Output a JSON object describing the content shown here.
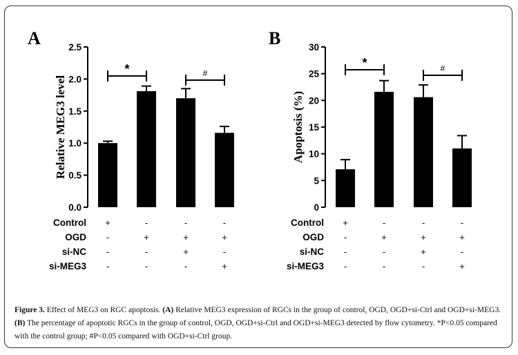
{
  "caption": {
    "lead": "Figure 3.",
    "p1": " Effect of MEG3 on RGC apoptosis. ",
    "a_tag": "(A)",
    "p2": " Relative MEG3 expression of RGCs in the group of control, OGD, OGD+si-Ctrl and OGD+si-MEG3. ",
    "b_tag": "(B)",
    "p3": " The percentage of apoptotic RGCs in the group of control, OGD, OGD+si-Ctrl and OGD+si-MEG3 detected by flow cytometry. *P<0.05 compared with the control group; #P<0.05 compared with OGD+si-Ctrl group."
  },
  "chart_data": [
    {
      "type": "bar",
      "panel": "A",
      "ylabel": "Relative MEG3 level",
      "ylim": [
        0,
        2.5
      ],
      "yticks": [
        "0.0",
        "0.5",
        "1.0",
        "1.5",
        "2.0",
        "2.5"
      ],
      "values": [
        1.0,
        1.81,
        1.7,
        1.16
      ],
      "errors": [
        0.03,
        0.08,
        0.15,
        0.1
      ],
      "bar_color": "#000000",
      "significance": [
        {
          "from": 0,
          "to": 1,
          "label": "*"
        },
        {
          "from": 2,
          "to": 3,
          "label": "#"
        }
      ],
      "conditions": [
        {
          "name": "Control",
          "marks": [
            "+",
            "-",
            "-",
            "-"
          ]
        },
        {
          "name": "OGD",
          "marks": [
            "-",
            "+",
            "+",
            "+"
          ]
        },
        {
          "name": "si-NC",
          "marks": [
            "-",
            "-",
            "+",
            "-"
          ]
        },
        {
          "name": "si-MEG3",
          "marks": [
            "-",
            "-",
            "-",
            "+"
          ]
        }
      ]
    },
    {
      "type": "bar",
      "panel": "B",
      "ylabel": "Apoptosis (%)",
      "ylim": [
        0,
        30
      ],
      "yticks": [
        "0",
        "5",
        "10",
        "15",
        "20",
        "25",
        "30"
      ],
      "values": [
        7.1,
        21.6,
        20.6,
        11.0
      ],
      "errors": [
        1.8,
        2.1,
        2.3,
        2.4
      ],
      "bar_color": "#000000",
      "significance": [
        {
          "from": 0,
          "to": 1,
          "label": "*"
        },
        {
          "from": 2,
          "to": 3,
          "label": "#"
        }
      ],
      "conditions": [
        {
          "name": "Control",
          "marks": [
            "+",
            "-",
            "-",
            "-"
          ]
        },
        {
          "name": "OGD",
          "marks": [
            "-",
            "+",
            "+",
            "+"
          ]
        },
        {
          "name": "si-NC",
          "marks": [
            "-",
            "-",
            "+",
            "-"
          ]
        },
        {
          "name": "si-MEG3",
          "marks": [
            "-",
            "-",
            "-",
            "+"
          ]
        }
      ]
    }
  ]
}
